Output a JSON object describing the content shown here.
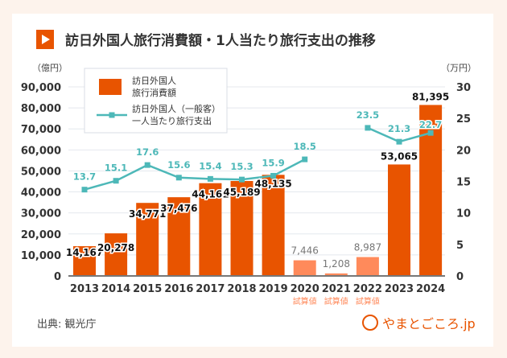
{
  "title": "訪日外国人旅行消費額・1人当たり旅行支出の推移",
  "source": "出典: 観光庁",
  "logo": "やまとごころ.jp",
  "colors": {
    "bar": "#e85400",
    "bar_estimate": "#ff8a5b",
    "line": "#4db8b8",
    "estimate_label": "#ff8a5b"
  },
  "chart_data": {
    "type": "bar+line",
    "categories": [
      "2013",
      "2014",
      "2015",
      "2016",
      "2017",
      "2018",
      "2019",
      "2020",
      "2021",
      "2022",
      "2023",
      "2024"
    ],
    "estimate_note": "試算値",
    "estimate_flags": [
      false,
      false,
      false,
      false,
      false,
      false,
      false,
      true,
      true,
      true,
      false,
      false
    ],
    "y_left": {
      "unit": "（億円）",
      "lim": [
        0,
        90000
      ],
      "ticks": [
        "0",
        "10,000",
        "20,000",
        "30,000",
        "40,000",
        "50,000",
        "60,000",
        "70,000",
        "80,000",
        "90,000"
      ]
    },
    "y_right": {
      "unit": "（万円）",
      "lim": [
        0,
        30
      ],
      "ticks": [
        "0",
        "5",
        "10",
        "15",
        "20",
        "25",
        "30"
      ]
    },
    "grid": true,
    "legend_position": "top-left",
    "series": [
      {
        "name": "訪日外国人\n旅行消費額",
        "type": "bar",
        "axis": "left",
        "values": [
          14167,
          20278,
          34771,
          37476,
          44161,
          45189,
          48135,
          7446,
          1208,
          8987,
          53065,
          81395
        ],
        "labels": [
          "14,167",
          "20,278",
          "34,771",
          "37,476",
          "44,161",
          "45,189",
          "48,135",
          "7,446",
          "1,208",
          "8,987",
          "53,065",
          "81,395"
        ]
      },
      {
        "name": "訪日外国人（一般客）\n一人当たり旅行支出",
        "type": "line",
        "axis": "right",
        "values": [
          13.7,
          15.1,
          17.6,
          15.6,
          15.4,
          15.3,
          15.9,
          18.5,
          null,
          23.5,
          21.3,
          22.7
        ],
        "labels": [
          "13.7",
          "15.1",
          "17.6",
          "15.6",
          "15.4",
          "15.3",
          "15.9",
          "18.5",
          "",
          "23.5",
          "21.3",
          "22.7"
        ]
      }
    ]
  }
}
